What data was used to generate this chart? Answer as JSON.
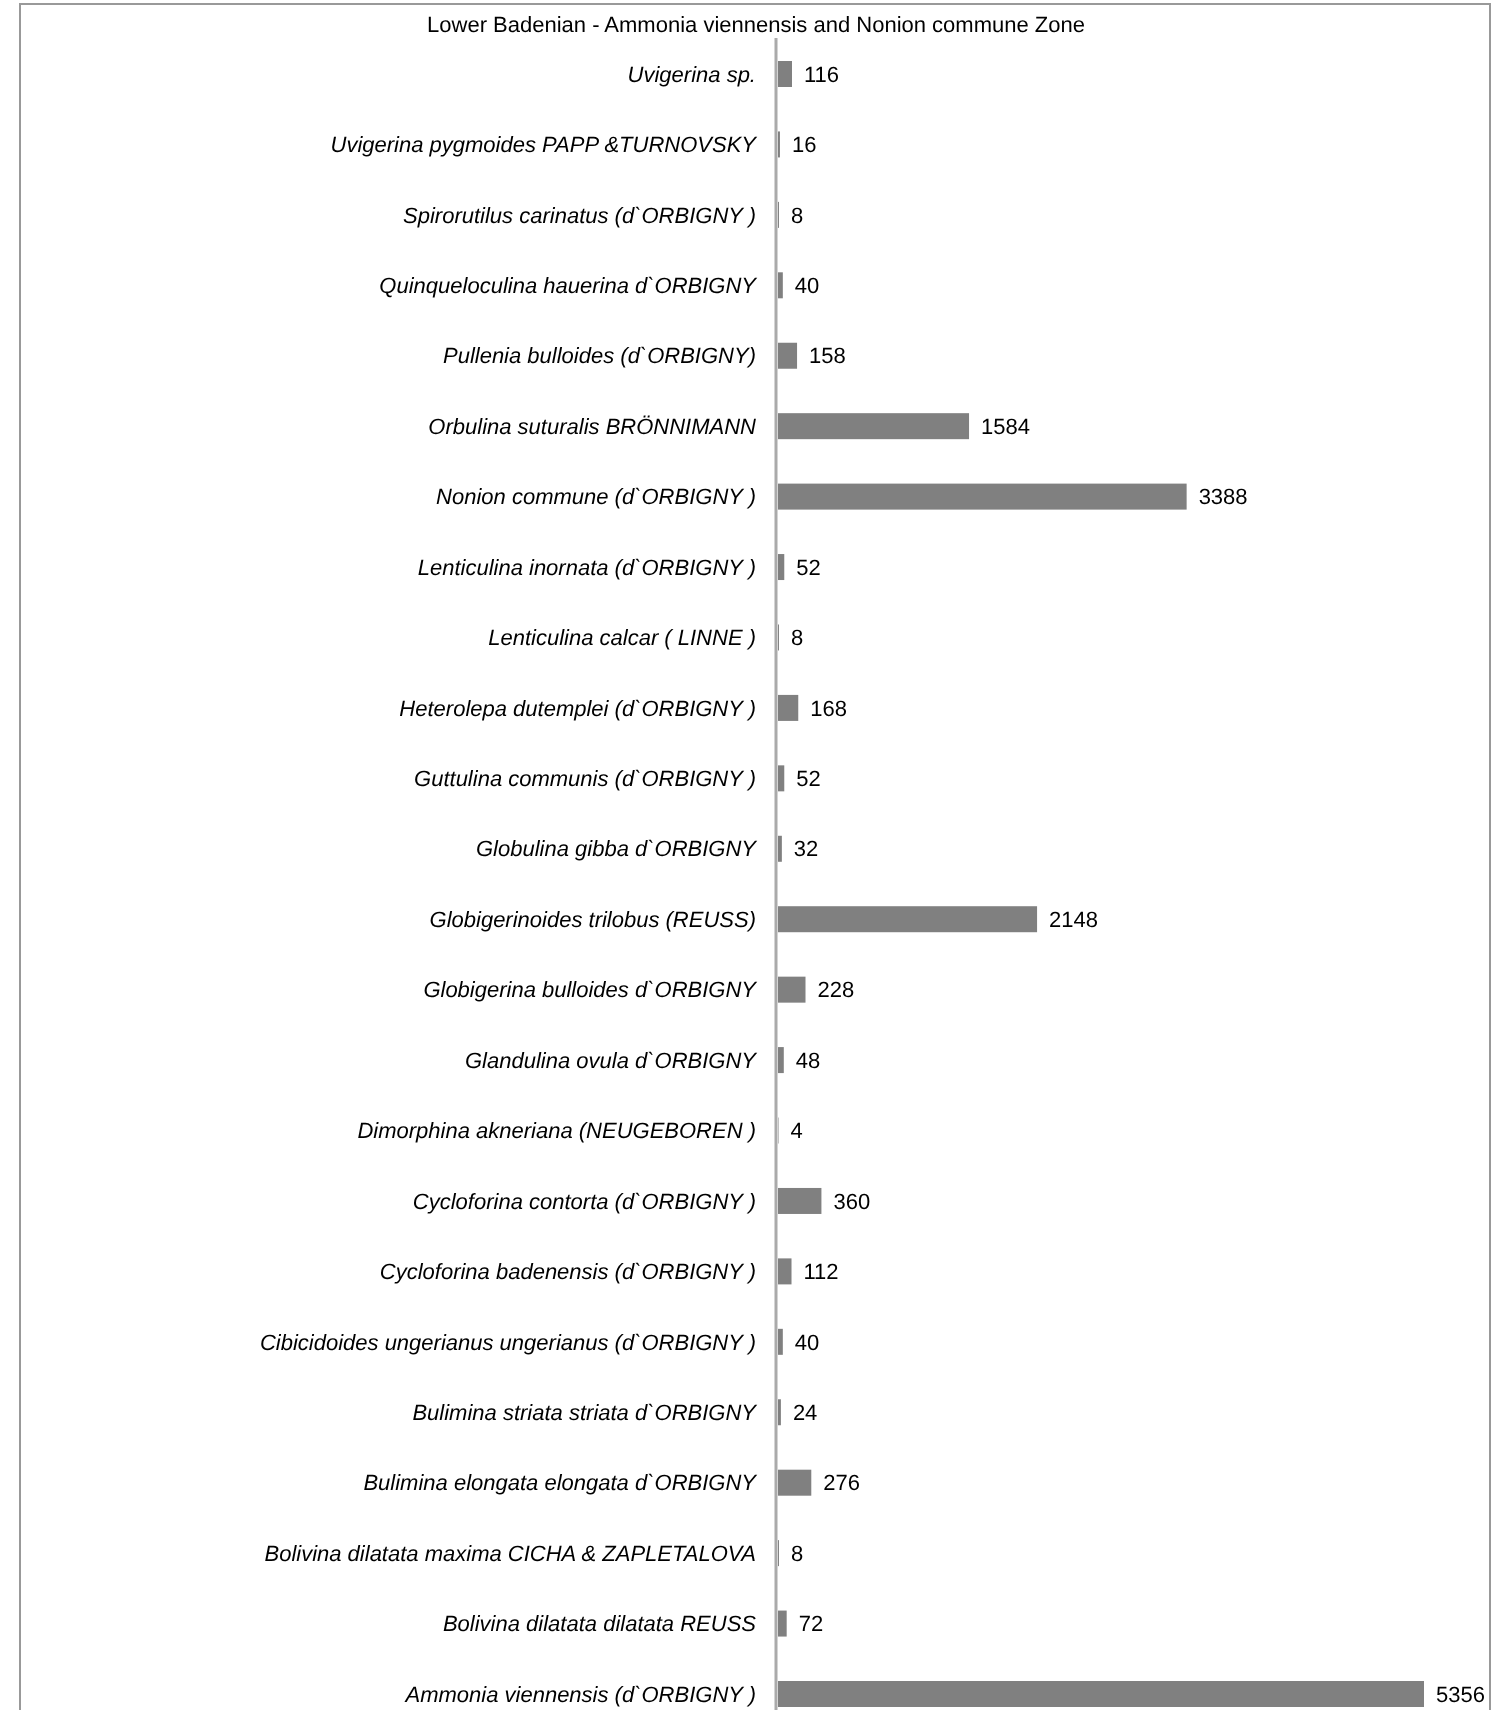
{
  "chart_data": {
    "type": "bar",
    "orientation": "horizontal",
    "title": "Lower Badenian - Ammonia viennensis and Nonion commune Zone",
    "color": "#808080",
    "data_labels": true,
    "categories": [
      "Uvigerina sp.",
      "Uvigerina pygmoides PAPP &TURNOVSKY",
      "Spirorutilus carinatus (d`ORBIGNY )",
      "Quinqueloculina hauerina d`ORBIGNY",
      "Pullenia bulloides (d`ORBIGNY)",
      "Orbulina suturalis BRÖNNIMANN",
      "Nonion commune (d`ORBIGNY )",
      "Lenticulina inornata (d`ORBIGNY )",
      "Lenticulina calcar ( LINNE )",
      "Heterolepa dutemplei (d`ORBIGNY )",
      "Guttulina communis (d`ORBIGNY )",
      "Globulina gibba d`ORBIGNY",
      "Globigerinoides trilobus (REUSS)",
      "Globigerina bulloides d`ORBIGNY",
      "Glandulina ovula d`ORBIGNY",
      "Dimorphina akneriana (NEUGEBOREN )",
      "Cycloforina contorta (d`ORBIGNY )",
      "Cycloforina badenensis (d`ORBIGNY )",
      "Cibicidoides ungerianus ungerianus (d`ORBIGNY )",
      "Bulimina striata striata d`ORBIGNY",
      "Bulimina elongata elongata d`ORBIGNY",
      "Bolivina dilatata maxima CICHA & ZAPLETALOVA",
      "Bolivina dilatata dilatata REUSS",
      "Ammonia viennensis (d`ORBIGNY )"
    ],
    "values": [
      116,
      16,
      8,
      40,
      158,
      1584,
      3388,
      52,
      8,
      168,
      52,
      32,
      2148,
      228,
      48,
      4,
      360,
      112,
      40,
      24,
      276,
      8,
      72,
      5356
    ]
  }
}
